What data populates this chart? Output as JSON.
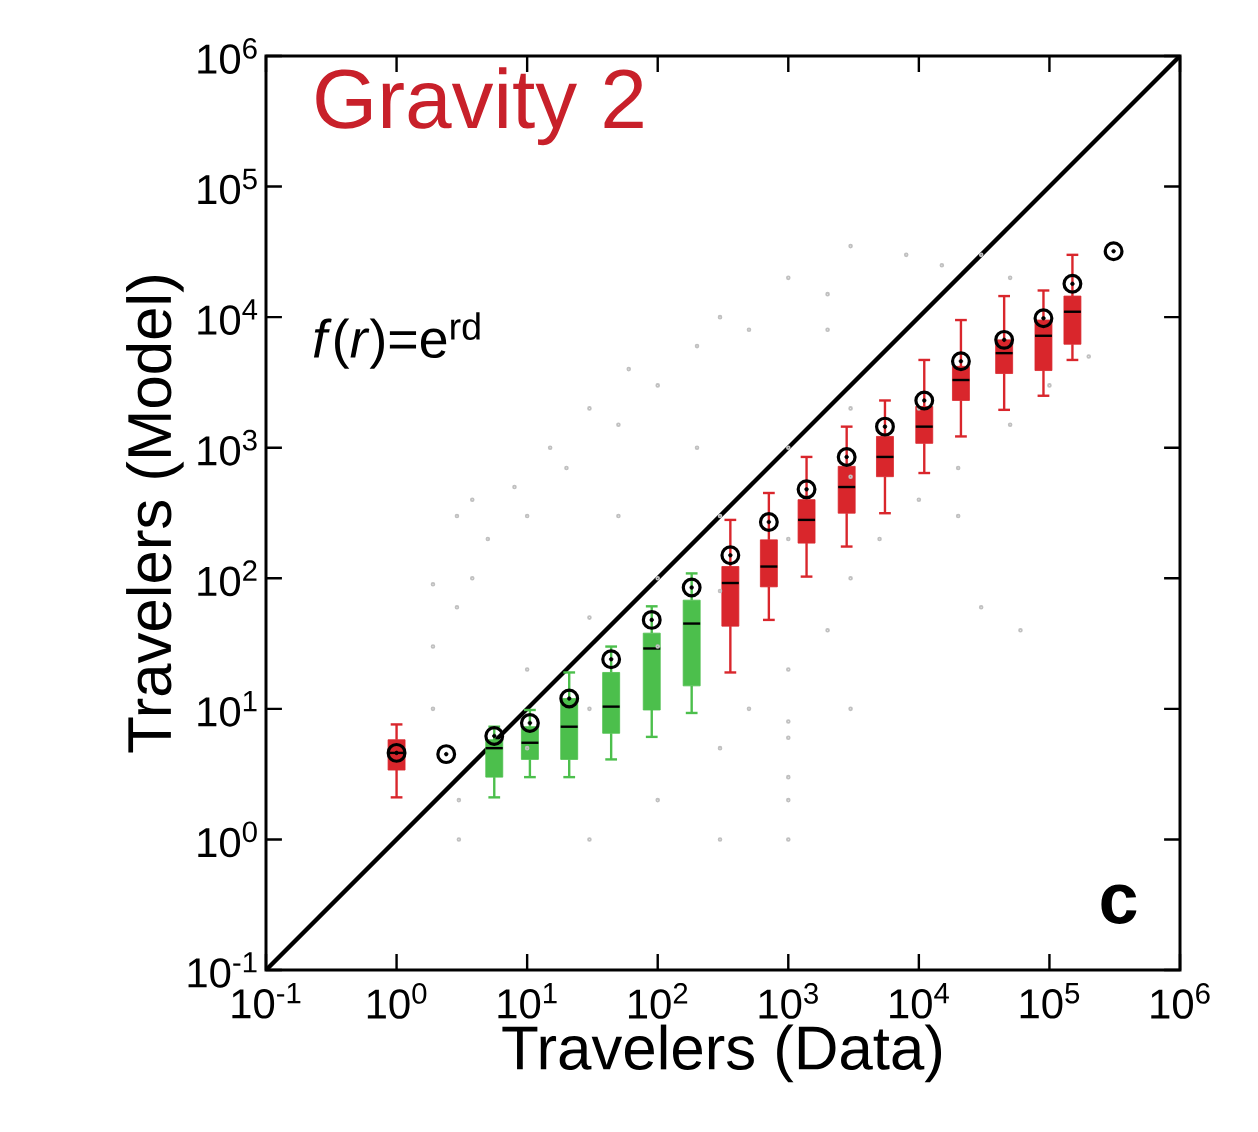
{
  "chart_data": {
    "type": "scatter",
    "title": "Gravity 2",
    "xlabel": "Travelers (Data)",
    "ylabel": "Travelers (Model)",
    "annotations": [
      "*f*(*r*)=e$^{rd}$",
      "**c**"
    ],
    "log": "xy",
    "grid": false,
    "xlim": [
      0.1,
      1000000
    ],
    "ylim": [
      0.1,
      1000000
    ],
    "xticks": [
      {
        "value": 0.1,
        "label": "10$^{-1}$"
      },
      {
        "value": 1,
        "label": "10$^{0}$"
      },
      {
        "value": 10,
        "label": "10$^{1}$"
      },
      {
        "value": 100,
        "label": "10$^{2}$"
      },
      {
        "value": 1000,
        "label": "10$^{3}$"
      },
      {
        "value": 10000,
        "label": "10$^{4}$"
      },
      {
        "value": 100000,
        "label": "10$^{5}$"
      },
      {
        "value": 1000000,
        "label": "10$^{6}$"
      }
    ],
    "yticks": [
      {
        "value": 0.1,
        "label": "10$^{-1}$"
      },
      {
        "value": 1,
        "label": "10$^{0}$"
      },
      {
        "value": 10,
        "label": "10$^{1}$"
      },
      {
        "value": 100,
        "label": "10$^{2}$"
      },
      {
        "value": 1000,
        "label": "10$^{3}$"
      },
      {
        "value": 10000,
        "label": "10$^{4}$"
      },
      {
        "value": 100000,
        "label": "10$^{5}$"
      },
      {
        "value": 1000000,
        "label": "10$^{6}$"
      }
    ],
    "series": [
      {
        "marker": "circle",
        "color": "#c0c0c0",
        "x": [
          1.9,
          1.9,
          1.9,
          2.9,
          2.9,
          3.8,
          3.8,
          5,
          8,
          10,
          15,
          20,
          30,
          50,
          60,
          100,
          200,
          300,
          500,
          1000,
          2000,
          3000,
          8000,
          15000,
          30000,
          50000,
          100000,
          50000,
          20000,
          10000,
          5000,
          3000,
          2000,
          1000,
          500,
          1000,
          20000,
          200000,
          30000,
          60000,
          3,
          30,
          300,
          1000,
          3,
          100,
          1000,
          1000,
          300,
          1000,
          3000,
          10,
          30,
          100,
          300,
          1000,
          3000,
          10,
          30,
          100,
          300,
          1000,
          3000,
          10000,
          50,
          200,
          2000
        ],
        "values": [
          90,
          30,
          10,
          300,
          60,
          400,
          100,
          200,
          500,
          300,
          1000,
          700,
          2000,
          1500,
          4000,
          3000,
          6000,
          10000,
          8000,
          20000,
          15000,
          35000,
          30000,
          25000,
          30000,
          20000,
          3000,
          1500,
          700,
          400,
          200,
          100,
          40,
          20,
          10,
          6,
          300,
          5000,
          60,
          40,
          1,
          1,
          1,
          1,
          2,
          2,
          2,
          3,
          5,
          8,
          10,
          20,
          50,
          100,
          300,
          1000,
          2000,
          5,
          10,
          30,
          80,
          200,
          600,
          2000,
          300,
          1000,
          8000
        ]
      },
      {
        "type": "line",
        "line_style": "solid",
        "color": "#000000",
        "x": [
          0.1,
          1000000
        ],
        "values": [
          0.1,
          1000000
        ]
      },
      {
        "type": "box",
        "x": [
          1,
          5.6,
          10.5,
          21,
          44,
          90,
          182,
          360,
          710,
          1380,
          2800,
          5500,
          11000,
          21000,
          45000,
          90000,
          150000
        ],
        "colors": [
          "#d9262c",
          "#4cbf4c",
          "#4cbf4c",
          "#4cbf4c",
          "#4cbf4c",
          "#4cbf4c",
          "#4cbf4c",
          "#d9262c",
          "#d9262c",
          "#d9262c",
          "#d9262c",
          "#d9262c",
          "#d9262c",
          "#d9262c",
          "#d9262c",
          "#d9262c",
          "#d9262c"
        ],
        "boxes": [
          {
            "low": 2.1,
            "q1": 3.4,
            "median": 4.6,
            "q3": 5.8,
            "high": 7.6
          },
          {
            "low": 2.1,
            "q1": 3.0,
            "median": 5.0,
            "q3": 5.8,
            "high": 7.3
          },
          {
            "low": 3.0,
            "q1": 4.1,
            "median": 5.5,
            "q3": 7.3,
            "high": 9.8
          },
          {
            "low": 3.0,
            "q1": 4.1,
            "median": 7.3,
            "q3": 12,
            "high": 19
          },
          {
            "low": 4.1,
            "q1": 6.5,
            "median": 10.4,
            "q3": 19,
            "high": 30
          },
          {
            "low": 6.1,
            "q1": 9.8,
            "median": 29,
            "q3": 38,
            "high": 61
          },
          {
            "low": 9.3,
            "q1": 15,
            "median": 45,
            "q3": 68,
            "high": 109
          },
          {
            "low": 19,
            "q1": 43,
            "median": 92,
            "q3": 123,
            "high": 280
          },
          {
            "low": 48,
            "q1": 86,
            "median": 123,
            "q3": 197,
            "high": 450
          },
          {
            "low": 103,
            "q1": 186,
            "median": 280,
            "q3": 400,
            "high": 850
          },
          {
            "low": 175,
            "q1": 315,
            "median": 500,
            "q3": 720,
            "high": 1450
          },
          {
            "low": 315,
            "q1": 600,
            "median": 850,
            "q3": 1220,
            "high": 2300
          },
          {
            "low": 640,
            "q1": 1080,
            "median": 1450,
            "q3": 2070,
            "high": 4700
          },
          {
            "low": 1220,
            "q1": 2300,
            "median": 3300,
            "q3": 4200,
            "high": 9500
          },
          {
            "low": 1950,
            "q1": 3700,
            "median": 5300,
            "q3": 6700,
            "high": 14500
          },
          {
            "low": 2500,
            "q1": 3900,
            "median": 7200,
            "q3": 9500,
            "high": 16000
          },
          {
            "low": 4700,
            "q1": 6200,
            "median": 11000,
            "q3": 14500,
            "high": 30000
          }
        ]
      },
      {
        "type": "scatter",
        "marker": "circle",
        "color": "#000000",
        "x": [
          1,
          2.4,
          5.6,
          10.5,
          21,
          44,
          90,
          182,
          360,
          710,
          1380,
          2800,
          5500,
          11000,
          21000,
          45000,
          90000,
          150000,
          310000
        ],
        "values": [
          4.6,
          4.5,
          6.2,
          7.8,
          12,
          24,
          48,
          85,
          150,
          270,
          480,
          850,
          1450,
          2300,
          4600,
          6700,
          9800,
          18000,
          32000
        ]
      }
    ]
  }
}
